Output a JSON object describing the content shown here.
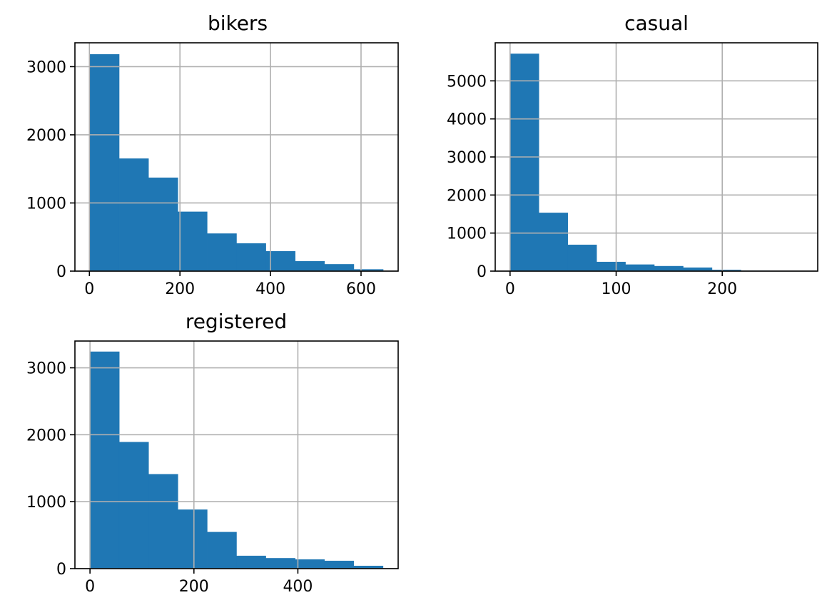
{
  "chart_data": [
    {
      "type": "bar",
      "title": "bikers",
      "xlabel": "",
      "ylabel": "",
      "grid": true,
      "xlim": [
        -32,
        682
      ],
      "ylim": [
        0,
        3350
      ],
      "xticks": [
        0,
        200,
        400,
        600
      ],
      "yticks": [
        0,
        1000,
        2000,
        3000
      ],
      "bin_edges": [
        1,
        65.8,
        130.6,
        195.4,
        260.2,
        325,
        389.8,
        454.6,
        519.4,
        584.2,
        649
      ],
      "values": [
        3180,
        1650,
        1370,
        870,
        550,
        405,
        290,
        145,
        100,
        25
      ],
      "color": "#1f77b4"
    },
    {
      "type": "bar",
      "title": "casual",
      "xlabel": "",
      "ylabel": "",
      "grid": true,
      "xlim": [
        -14,
        290
      ],
      "ylim": [
        0,
        6000
      ],
      "xticks": [
        0,
        100,
        200
      ],
      "yticks": [
        0,
        1000,
        2000,
        3000,
        4000,
        5000
      ],
      "bin_edges": [
        0,
        27.2,
        54.4,
        81.6,
        108.8,
        136,
        163.2,
        190.4,
        217.6,
        244.8,
        272
      ],
      "values": [
        5710,
        1530,
        690,
        240,
        170,
        130,
        90,
        30,
        10,
        5
      ],
      "color": "#1f77b4"
    },
    {
      "type": "bar",
      "title": "registered",
      "xlabel": "",
      "ylabel": "",
      "grid": true,
      "xlim": [
        -29,
        593
      ],
      "ylim": [
        0,
        3400
      ],
      "xticks": [
        0,
        200,
        400
      ],
      "yticks": [
        0,
        1000,
        2000,
        3000
      ],
      "bin_edges": [
        0,
        56.4,
        112.8,
        169.2,
        225.6,
        282,
        338.4,
        394.8,
        451.2,
        507.6,
        564
      ],
      "values": [
        3240,
        1890,
        1410,
        880,
        545,
        190,
        155,
        135,
        115,
        40
      ],
      "color": "#1f77b4"
    }
  ]
}
